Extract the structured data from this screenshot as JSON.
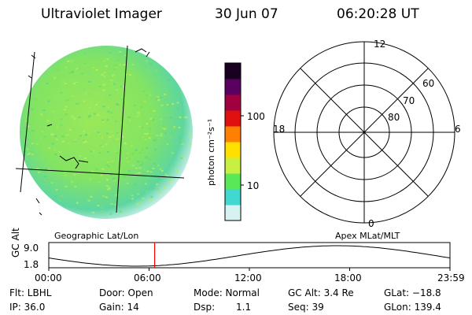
{
  "header": {
    "instrument": "Ultraviolet Imager",
    "date": "30 Jun 07",
    "time": "06:20:28 UT"
  },
  "colorbar": {
    "label": "photon cm⁻²s⁻¹",
    "ticks": [
      "100",
      "10"
    ]
  },
  "polar_plot": {
    "title": "Apex MLat/MLT",
    "mlt_labels": {
      "top": "12",
      "right": "6",
      "bottom": "0",
      "left": "18"
    },
    "lat_labels": [
      "60",
      "70",
      "80"
    ]
  },
  "globe_plot": {
    "title": "Geographic Lat/Lon"
  },
  "altitude_plot": {
    "ylabel": "GC Alt",
    "y_ticks": [
      "9.0",
      "1.8"
    ],
    "x_ticks": [
      "00:00",
      "06:00",
      "12:00",
      "18:00",
      "23:59"
    ],
    "marker_time": "06:20",
    "marker_color": "#ff0000"
  },
  "status": {
    "filter": "Flt: LBHL",
    "door": "Door: Open",
    "mode": "Mode: Normal",
    "gc_alt": "GC Alt: 3.4 Re",
    "glat": "GLat: −18.8",
    "ip": "IP: 36.0",
    "gain": "Gain: 14",
    "dsp_label": "Dsp:",
    "dsp_value": "1.1",
    "seq": "Seq: 39",
    "glon": "GLon: 139.4"
  },
  "colors": {
    "globe_fill": "#8fe65a",
    "cbar_stops": [
      "#d8f2f2",
      "#40d8d0",
      "#58e858",
      "#c8f040",
      "#ffe000",
      "#ff8000",
      "#e01010",
      "#a00040",
      "#5a0060",
      "#1a0020"
    ]
  }
}
